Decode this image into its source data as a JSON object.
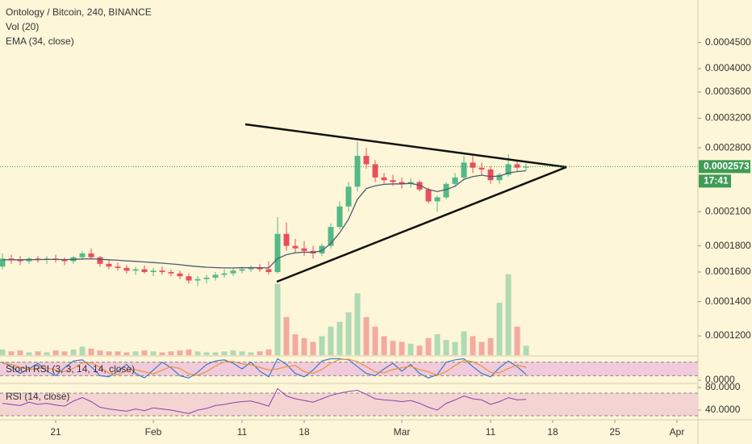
{
  "chart_data": {
    "type": "candlestick",
    "title": "Ontology / Bitcoin, 240, BINANCE",
    "volume_label": "Vol (20)",
    "ema_label": "EMA (34, close)",
    "stoch_label": "Stoch RSI (3, 3, 14, 14, close)",
    "rsi_label": "RSI (14, close)",
    "countdown": "17:41",
    "log_scale": true,
    "up_color": "#53b987",
    "down_color": "#eb4d5c",
    "ema_color": "#4e5b73",
    "stoch_k_color": "#3d7ac6",
    "stoch_d_color": "#e8953a",
    "rsi_color": "#8e3fb0",
    "x": [
      "Jan 15",
      "Jan 16",
      "Jan 17",
      "Jan 18",
      "Jan 19",
      "Jan 20",
      "Jan 21",
      "Jan 22",
      "Jan 23",
      "Jan 24",
      "Jan 25",
      "Jan 26",
      "Jan 27",
      "Jan 28",
      "Jan 29",
      "Jan 30",
      "Jan 31",
      "Feb 1",
      "Feb 2",
      "Feb 3",
      "Feb 4",
      "Feb 5",
      "Feb 6",
      "Feb 7",
      "Feb 8",
      "Feb 9",
      "Feb 10",
      "Feb 11",
      "Feb 12",
      "Feb 13",
      "Feb 14",
      "Feb 15",
      "Feb 16",
      "Feb 17",
      "Feb 18",
      "Feb 19",
      "Feb 20",
      "Feb 21",
      "Feb 22",
      "Feb 23",
      "Feb 24",
      "Feb 25",
      "Feb 26",
      "Feb 27",
      "Feb 28",
      "Mar 1",
      "Mar 2",
      "Mar 3",
      "Mar 4",
      "Mar 5",
      "Mar 6",
      "Mar 7",
      "Mar 8",
      "Mar 9",
      "Mar 10",
      "Mar 11",
      "Mar 12",
      "Mar 13",
      "Mar 14",
      "Mar 15"
    ],
    "open": [
      0.000164,
      0.00017,
      0.000169,
      0.000168,
      0.00017,
      0.000169,
      0.00017,
      0.000169,
      0.000168,
      0.000171,
      0.000174,
      0.000171,
      0.000166,
      0.000164,
      0.000163,
      0.000161,
      0.000162,
      0.00016,
      0.000161,
      0.00016,
      0.000159,
      0.000157,
      0.000154,
      0.000155,
      0.000156,
      0.000158,
      0.000159,
      0.000161,
      0.000162,
      0.000163,
      0.000162,
      0.00016,
      0.00019,
      0.00018,
      0.000178,
      0.000176,
      0.000174,
      0.00018,
      0.000196,
      0.000215,
      0.000235,
      0.00027,
      0.00026,
      0.000245,
      0.000242,
      0.00024,
      0.000238,
      0.00024,
      0.000232,
      0.00022,
      0.000224,
      0.000238,
      0.000245,
      0.000262,
      0.000256,
      0.000254,
      0.000242,
      0.000248,
      0.00026,
      0.000256
    ],
    "high": [
      0.000174,
      0.000173,
      0.000172,
      0.000171,
      0.000172,
      0.000172,
      0.000173,
      0.000171,
      0.000172,
      0.000176,
      0.000178,
      0.000172,
      0.000169,
      0.000167,
      0.000165,
      0.000164,
      0.000165,
      0.000163,
      0.000164,
      0.000162,
      0.000161,
      0.000159,
      0.000157,
      0.000158,
      0.00016,
      0.000162,
      0.000163,
      0.000164,
      0.000165,
      0.000166,
      0.000168,
      0.000205,
      0.0002,
      0.000186,
      0.000184,
      0.00018,
      0.000182,
      0.000199,
      0.00022,
      0.00024,
      0.000288,
      0.00028,
      0.000265,
      0.00025,
      0.000248,
      0.000245,
      0.000244,
      0.000242,
      0.000234,
      0.000226,
      0.00024,
      0.00025,
      0.00027,
      0.00027,
      0.000262,
      0.000258,
      0.00025,
      0.000272,
      0.000264,
      0.000261
    ],
    "low": [
      0.000162,
      0.000166,
      0.000165,
      0.000166,
      0.000167,
      0.000166,
      0.000167,
      0.000165,
      0.000166,
      0.000169,
      0.00017,
      0.000164,
      0.000162,
      0.000161,
      0.000159,
      0.000158,
      0.000159,
      0.000157,
      0.000158,
      0.000157,
      0.000155,
      0.000152,
      0.00015,
      0.000152,
      0.000154,
      0.000156,
      0.000157,
      0.000159,
      0.00016,
      0.00016,
      0.000158,
      0.000159,
      0.000176,
      0.000174,
      0.000172,
      0.00017,
      0.000172,
      0.000178,
      0.000194,
      0.00021,
      0.00023,
      0.000255,
      0.00024,
      0.000238,
      0.000236,
      0.000233,
      0.000234,
      0.00023,
      0.000218,
      0.00021,
      0.000222,
      0.000235,
      0.000243,
      0.00025,
      0.000248,
      0.000238,
      0.000238,
      0.000246,
      0.000252,
      0.000253
    ],
    "close": [
      0.00017,
      0.000169,
      0.000168,
      0.00017,
      0.000169,
      0.00017,
      0.000169,
      0.000168,
      0.000171,
      0.000174,
      0.000171,
      0.000166,
      0.000164,
      0.000163,
      0.000161,
      0.000162,
      0.00016,
      0.000161,
      0.00016,
      0.000159,
      0.000157,
      0.000154,
      0.000155,
      0.000156,
      0.000158,
      0.000159,
      0.000161,
      0.000162,
      0.000163,
      0.000162,
      0.00016,
      0.00019,
      0.00018,
      0.000178,
      0.000176,
      0.000174,
      0.00018,
      0.000196,
      0.000215,
      0.000235,
      0.00027,
      0.00026,
      0.000245,
      0.000242,
      0.00024,
      0.000238,
      0.00024,
      0.000232,
      0.00022,
      0.000224,
      0.000238,
      0.000245,
      0.000262,
      0.000256,
      0.000254,
      0.000242,
      0.000248,
      0.00026,
      0.000256,
      0.0002573
    ],
    "volume": [
      6,
      4,
      5,
      3,
      4,
      3,
      5,
      4,
      6,
      9,
      7,
      5,
      4,
      4,
      3,
      4,
      5,
      4,
      3,
      4,
      5,
      6,
      4,
      3,
      3,
      4,
      5,
      4,
      3,
      4,
      6,
      75,
      40,
      22,
      18,
      14,
      20,
      30,
      35,
      45,
      65,
      40,
      30,
      20,
      15,
      14,
      12,
      10,
      18,
      22,
      16,
      14,
      25,
      20,
      14,
      18,
      55,
      85,
      30,
      10
    ],
    "ema": [
      0.000169,
      0.0001691,
      0.0001691,
      0.0001692,
      0.0001692,
      0.0001693,
      0.0001693,
      0.0001692,
      0.0001694,
      0.0001697,
      0.0001698,
      0.0001695,
      0.0001691,
      0.0001687,
      0.0001682,
      0.0001679,
      0.0001674,
      0.000167,
      0.0001665,
      0.000166,
      0.0001654,
      0.0001646,
      0.000164,
      0.0001635,
      0.0001632,
      0.000163,
      0.000163,
      0.0001631,
      0.0001632,
      0.0001631,
      0.000163,
      0.00017,
      0.000173,
      0.0001745,
      0.000175,
      0.0001748,
      0.0001762,
      0.000182,
      0.000191,
      0.000203,
      0.000222,
      0.000233,
      0.000236,
      0.0002375,
      0.000238,
      0.000238,
      0.0002385,
      0.0002365,
      0.000232,
      0.00023,
      0.000232,
      0.0002355,
      0.000243,
      0.000246,
      0.0002475,
      0.000246,
      0.0002465,
      0.00025,
      0.0002515,
      0.0002525
    ],
    "stoch_k": [
      80,
      60,
      30,
      50,
      75,
      40,
      20,
      55,
      85,
      90,
      60,
      20,
      15,
      40,
      70,
      30,
      10,
      45,
      80,
      55,
      20,
      10,
      35,
      70,
      85,
      90,
      75,
      50,
      80,
      40,
      15,
      95,
      70,
      30,
      15,
      45,
      85,
      95,
      95,
      90,
      60,
      30,
      20,
      50,
      75,
      40,
      70,
      30,
      10,
      25,
      80,
      90,
      95,
      60,
      30,
      15,
      55,
      85,
      60,
      25
    ],
    "stoch_d": [
      75,
      70,
      57,
      47,
      52,
      55,
      45,
      38,
      53,
      77,
      78,
      57,
      32,
      25,
      42,
      47,
      37,
      28,
      45,
      60,
      52,
      28,
      22,
      38,
      63,
      82,
      83,
      72,
      68,
      57,
      45,
      50,
      60,
      65,
      38,
      30,
      48,
      75,
      92,
      93,
      82,
      60,
      37,
      33,
      48,
      55,
      62,
      47,
      37,
      22,
      38,
      65,
      88,
      82,
      62,
      35,
      33,
      52,
      67,
      57
    ],
    "rsi": [
      52,
      50,
      48,
      54,
      50,
      52,
      49,
      47,
      56,
      62,
      55,
      45,
      42,
      40,
      38,
      42,
      39,
      44,
      42,
      40,
      37,
      34,
      40,
      43,
      48,
      50,
      53,
      55,
      56,
      52,
      47,
      78,
      65,
      60,
      57,
      54,
      60,
      66,
      70,
      73,
      75,
      68,
      60,
      58,
      57,
      55,
      57,
      52,
      45,
      40,
      52,
      58,
      65,
      60,
      58,
      50,
      55,
      62,
      58,
      59
    ],
    "xlim": [
      "Jan 15",
      "Apr 3"
    ],
    "xticks": [
      {
        "value": "Jan 21",
        "label": "21"
      },
      {
        "value": "Feb 1",
        "label": "Feb"
      },
      {
        "value": "Feb 11",
        "label": "11"
      },
      {
        "value": "Feb 18",
        "label": "18"
      },
      {
        "value": "Mar 1",
        "label": "Mar"
      },
      {
        "value": "Mar 11",
        "label": "11"
      },
      {
        "value": "Mar 18",
        "label": "18"
      },
      {
        "value": "Mar 25",
        "label": "25"
      },
      {
        "value": "Apr 1",
        "label": "Apr"
      }
    ],
    "ylim": [
      0.00011,
      0.000545
    ],
    "yticks": [
      {
        "value": 0.00045,
        "label": "0.0004500"
      },
      {
        "value": 0.0004,
        "label": "0.0004000"
      },
      {
        "value": 0.00036,
        "label": "0.0003600"
      },
      {
        "value": 0.00032,
        "label": "0.0003200"
      },
      {
        "value": 0.00028,
        "label": "0.0002800"
      },
      {
        "value": 0.00021,
        "label": "0.0002100"
      },
      {
        "value": 0.00018,
        "label": "0.0001800"
      },
      {
        "value": 0.00016,
        "label": "0.0001600"
      },
      {
        "value": 0.00014,
        "label": "0.0001400"
      },
      {
        "value": 0.00012,
        "label": "0.0001200"
      }
    ],
    "last_price": {
      "value": 0.0002573,
      "label": "0.0002573"
    },
    "volume_ylim": [
      0,
      100
    ],
    "stoch_ylim": [
      0,
      100
    ],
    "stoch_band": [
      20,
      80
    ],
    "stoch_yticks": [
      {
        "value": 0,
        "label": "0.0000"
      }
    ],
    "rsi_ylim": [
      25,
      85
    ],
    "rsi_band": [
      30,
      70
    ],
    "rsi_yticks": [
      {
        "value": 80,
        "label": "80.0000"
      },
      {
        "value": 40,
        "label": "40.0000"
      }
    ]
  }
}
